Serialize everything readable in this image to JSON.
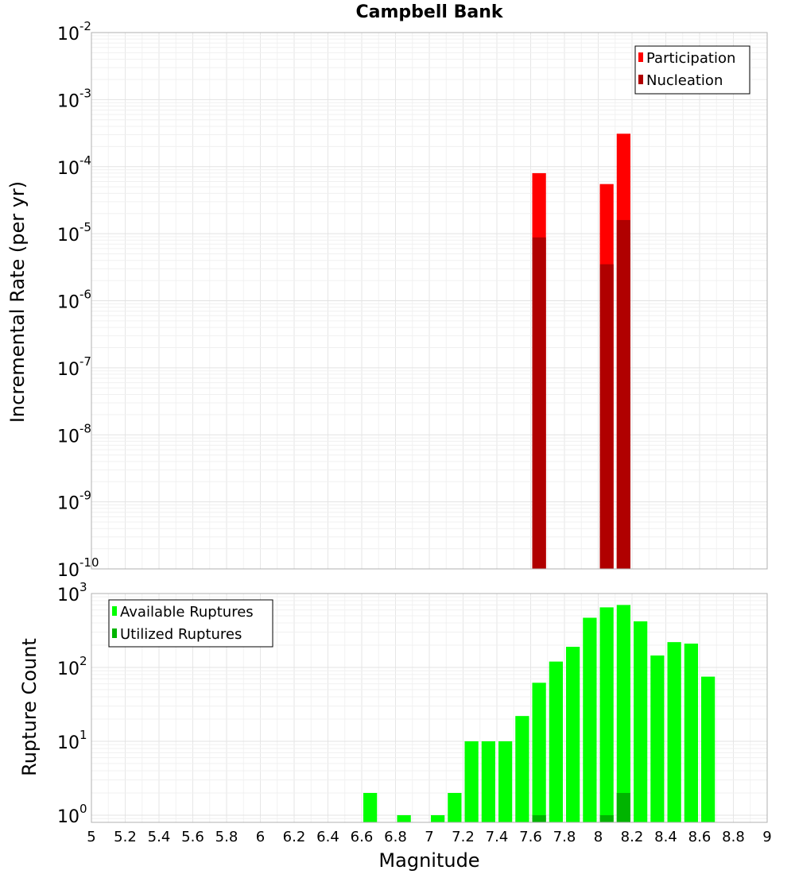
{
  "title": "Campbell Bank",
  "chart_data": [
    {
      "type": "bar",
      "yscale": "log",
      "ylabel": "Incremental Rate (per yr)",
      "xlabel": "Magnitude",
      "xlim": [
        5,
        9
      ],
      "ylim": [
        1e-10,
        0.01
      ],
      "ytick_exponents": [
        -10,
        -9,
        -8,
        -7,
        -6,
        -5,
        -4,
        -3,
        -2
      ],
      "ytick_base": "10",
      "bin_width": 0.1,
      "legend_position": "top-right",
      "series": [
        {
          "name": "Participation",
          "color": "#ff0000",
          "points": [
            {
              "x": 7.65,
              "y": 8e-05
            },
            {
              "x": 8.05,
              "y": 5.5e-05
            },
            {
              "x": 8.15,
              "y": 0.00031
            }
          ]
        },
        {
          "name": "Nucleation",
          "color": "#b00000",
          "points": [
            {
              "x": 7.65,
              "y": 8.8e-06
            },
            {
              "x": 8.05,
              "y": 3.5e-06
            },
            {
              "x": 8.15,
              "y": 1.6e-05
            }
          ]
        }
      ]
    },
    {
      "type": "bar",
      "yscale": "log",
      "ylabel": "Rupture Count",
      "xlabel": "Magnitude",
      "xlim": [
        5,
        9
      ],
      "ylim": [
        0.8,
        1000
      ],
      "ytick_exponents": [
        0,
        1,
        2,
        3
      ],
      "ytick_base": "10",
      "bin_width": 0.1,
      "legend_position": "top-left",
      "xtick_labels": [
        "5",
        "5.2",
        "5.4",
        "5.6",
        "5.8",
        "6",
        "6.2",
        "6.4",
        "6.6",
        "6.8",
        "7",
        "7.2",
        "7.4",
        "7.6",
        "7.8",
        "8",
        "8.2",
        "8.4",
        "8.6",
        "8.8",
        "9"
      ],
      "series": [
        {
          "name": "Available Ruptures",
          "color": "#00ff00",
          "points": [
            {
              "x": 6.65,
              "y": 2
            },
            {
              "x": 6.85,
              "y": 1
            },
            {
              "x": 7.05,
              "y": 1
            },
            {
              "x": 7.15,
              "y": 2
            },
            {
              "x": 7.25,
              "y": 10
            },
            {
              "x": 7.35,
              "y": 10
            },
            {
              "x": 7.45,
              "y": 10
            },
            {
              "x": 7.55,
              "y": 22
            },
            {
              "x": 7.65,
              "y": 62
            },
            {
              "x": 7.75,
              "y": 120
            },
            {
              "x": 7.85,
              "y": 190
            },
            {
              "x": 7.95,
              "y": 470
            },
            {
              "x": 8.05,
              "y": 650
            },
            {
              "x": 8.15,
              "y": 700
            },
            {
              "x": 8.25,
              "y": 420
            },
            {
              "x": 8.35,
              "y": 145
            },
            {
              "x": 8.45,
              "y": 220
            },
            {
              "x": 8.55,
              "y": 210
            },
            {
              "x": 8.65,
              "y": 75
            }
          ]
        },
        {
          "name": "Utilized Ruptures",
          "color": "#00b400",
          "points": [
            {
              "x": 7.65,
              "y": 1
            },
            {
              "x": 8.05,
              "y": 1
            },
            {
              "x": 8.15,
              "y": 2
            }
          ]
        }
      ]
    }
  ]
}
